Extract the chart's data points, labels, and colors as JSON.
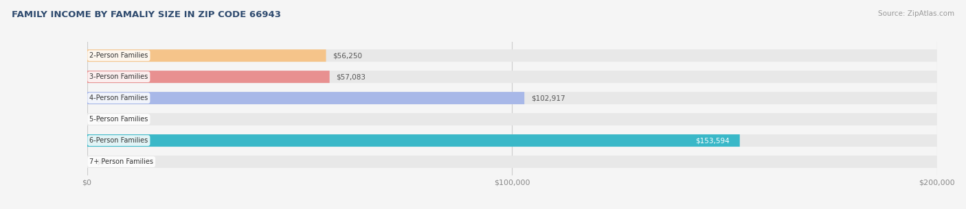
{
  "title": "FAMILY INCOME BY FAMALIY SIZE IN ZIP CODE 66943",
  "source": "Source: ZipAtlas.com",
  "categories": [
    "2-Person Families",
    "3-Person Families",
    "4-Person Families",
    "5-Person Families",
    "6-Person Families",
    "7+ Person Families"
  ],
  "values": [
    56250,
    57083,
    102917,
    0,
    153594,
    0
  ],
  "bar_colors": [
    "#f5c48a",
    "#e89090",
    "#a8b8e8",
    "#c8a8e8",
    "#3ab8c8",
    "#c0c8f0"
  ],
  "label_colors": [
    "#555555",
    "#555555",
    "#555555",
    "#555555",
    "#ffffff",
    "#555555"
  ],
  "xmax": 200000,
  "bar_height": 0.58,
  "background_color": "#f5f5f5",
  "bar_bg_color": "#e8e8e8",
  "title_color": "#2e4a6e",
  "source_color": "#999999",
  "label_fontsize": 7.5,
  "title_fontsize": 9.5,
  "tick_labels": [
    "$0",
    "$100,000",
    "$200,000"
  ],
  "tick_values": [
    0,
    100000,
    200000
  ]
}
